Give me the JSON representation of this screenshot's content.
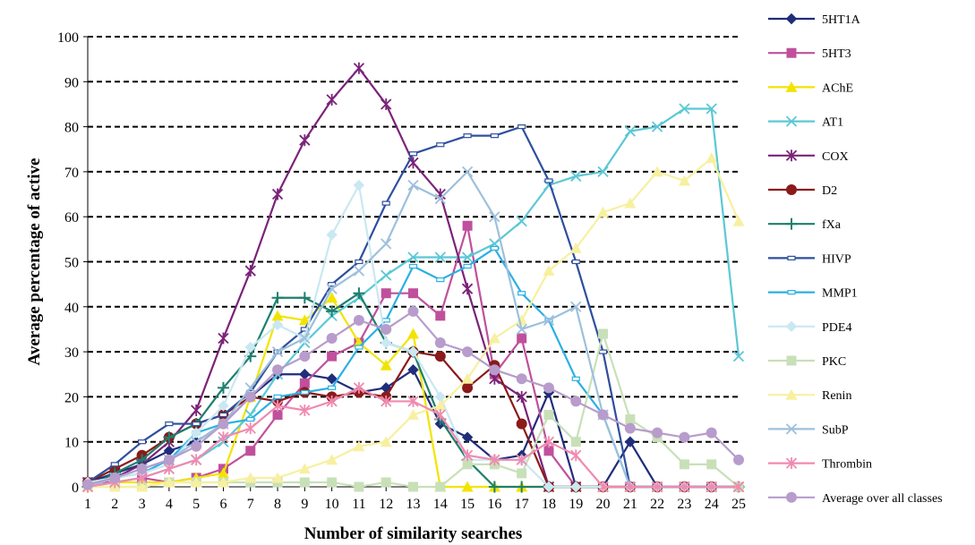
{
  "chart_data": {
    "type": "line",
    "title": "",
    "xlabel": "Number of similarity searches",
    "ylabel": "Average percentage of active",
    "x": [
      1,
      2,
      3,
      4,
      5,
      6,
      7,
      8,
      9,
      10,
      11,
      12,
      13,
      14,
      15,
      16,
      17,
      18,
      19,
      20,
      21,
      22,
      23,
      24,
      25
    ],
    "xlim": [
      1,
      25
    ],
    "ylim": [
      0,
      100
    ],
    "yticks": [
      0,
      10,
      20,
      30,
      40,
      50,
      60,
      70,
      80,
      90,
      100
    ],
    "grid": "horizontal dashed",
    "legend_position": "right",
    "series": [
      {
        "name": "5HT1A",
        "color": "#1F2D7B",
        "marker": "diamond",
        "values": [
          1,
          3,
          5,
          8,
          10,
          14,
          20,
          25,
          25,
          24,
          21,
          22,
          26,
          14,
          11,
          6,
          7,
          21,
          0,
          0,
          10,
          0,
          0,
          0,
          0
        ]
      },
      {
        "name": "5HT3",
        "color": "#C0509C",
        "marker": "square",
        "values": [
          1,
          1,
          2,
          1,
          2,
          4,
          8,
          16,
          23,
          29,
          32,
          43,
          43,
          38,
          58,
          25,
          33,
          8,
          0,
          0,
          0,
          0,
          0,
          0,
          0
        ]
      },
      {
        "name": "AChE",
        "color": "#F2E400",
        "marker": "triangle",
        "values": [
          0,
          1,
          1,
          1,
          2,
          3,
          20,
          38,
          37,
          42,
          32,
          27,
          34,
          0,
          0,
          0,
          0,
          0,
          0,
          0,
          0,
          0,
          0,
          0,
          0
        ]
      },
      {
        "name": "AT1",
        "color": "#5BC8D5",
        "marker": "x",
        "values": [
          0,
          1,
          2,
          4,
          6,
          10,
          16,
          25,
          32,
          38,
          42,
          47,
          51,
          51,
          51,
          54,
          59,
          67,
          69,
          70,
          79,
          80,
          84,
          84,
          29
        ]
      },
      {
        "name": "COX",
        "color": "#7B2379",
        "marker": "asterisk",
        "values": [
          1,
          2,
          5,
          10,
          17,
          33,
          48,
          65,
          77,
          86,
          93,
          85,
          72,
          65,
          44,
          24,
          20,
          0,
          0,
          0,
          0,
          0,
          0,
          0,
          0
        ]
      },
      {
        "name": "D2",
        "color": "#8B1A1A",
        "marker": "circle",
        "values": [
          1,
          4,
          7,
          11,
          14,
          16,
          20,
          19,
          21,
          20,
          21,
          20,
          30,
          29,
          22,
          27,
          14,
          0,
          0,
          0,
          0,
          0,
          0,
          0,
          0
        ]
      },
      {
        "name": "fXa",
        "color": "#1E7F6E",
        "marker": "plus",
        "values": [
          0,
          3,
          6,
          11,
          14,
          22,
          29,
          42,
          42,
          39,
          43,
          32,
          30,
          15,
          6,
          0,
          0,
          0,
          0,
          0,
          0,
          0,
          0,
          0,
          0
        ]
      },
      {
        "name": "HIVP",
        "color": "#2E4F9E",
        "marker": "dash",
        "values": [
          1,
          5,
          10,
          14,
          14,
          16,
          21,
          30,
          35,
          45,
          50,
          63,
          74,
          76,
          78,
          78,
          80,
          68,
          50,
          30,
          0,
          0,
          0,
          0,
          0
        ]
      },
      {
        "name": "MMP1",
        "color": "#2BB0E3",
        "marker": "dash",
        "values": [
          0,
          2,
          3,
          6,
          12,
          14,
          15,
          20,
          21,
          22,
          31,
          37,
          49,
          46,
          49,
          53,
          43,
          37,
          24,
          16,
          0,
          0,
          0,
          0,
          0
        ]
      },
      {
        "name": "PDE4",
        "color": "#C9E8F2",
        "marker": "diamond",
        "values": [
          1,
          2,
          3,
          5,
          12,
          18,
          31,
          36,
          33,
          56,
          67,
          32,
          30,
          20,
          6,
          6,
          6,
          0,
          0,
          0,
          0,
          0,
          0,
          0,
          0
        ]
      },
      {
        "name": "PKC",
        "color": "#C8E0B8",
        "marker": "square",
        "values": [
          0,
          0,
          0,
          1,
          1,
          1,
          1,
          1,
          1,
          1,
          0,
          1,
          0,
          0,
          5,
          5,
          3,
          16,
          10,
          34,
          15,
          11,
          5,
          5,
          0
        ]
      },
      {
        "name": "Renin",
        "color": "#F7F0A0",
        "marker": "triangle",
        "values": [
          0,
          0,
          0,
          1,
          1,
          1,
          2,
          2,
          4,
          6,
          9,
          10,
          16,
          18,
          24,
          33,
          37,
          48,
          53,
          61,
          63,
          70,
          68,
          73,
          59
        ]
      },
      {
        "name": "SubP",
        "color": "#9DC0DC",
        "marker": "x",
        "values": [
          0,
          2,
          4,
          6,
          10,
          14,
          22,
          30,
          33,
          44,
          48,
          54,
          67,
          64,
          70,
          60,
          35,
          37,
          40,
          16,
          0,
          0,
          0,
          0,
          0
        ]
      },
      {
        "name": "Thrombin",
        "color": "#F08AB0",
        "marker": "asterisk",
        "values": [
          0,
          1,
          2,
          4,
          6,
          11,
          13,
          18,
          17,
          19,
          22,
          19,
          19,
          16,
          7,
          6,
          6,
          10,
          7,
          0,
          0,
          0,
          0,
          0,
          0
        ]
      },
      {
        "name": "Average over all classes",
        "color": "#B79CCC",
        "marker": "circle",
        "values": [
          0.5,
          2,
          4,
          6,
          9,
          14,
          20,
          26,
          29,
          33,
          37,
          35,
          39,
          32,
          30,
          26,
          24,
          22,
          19,
          16,
          13,
          12,
          11,
          12,
          6
        ]
      }
    ]
  }
}
